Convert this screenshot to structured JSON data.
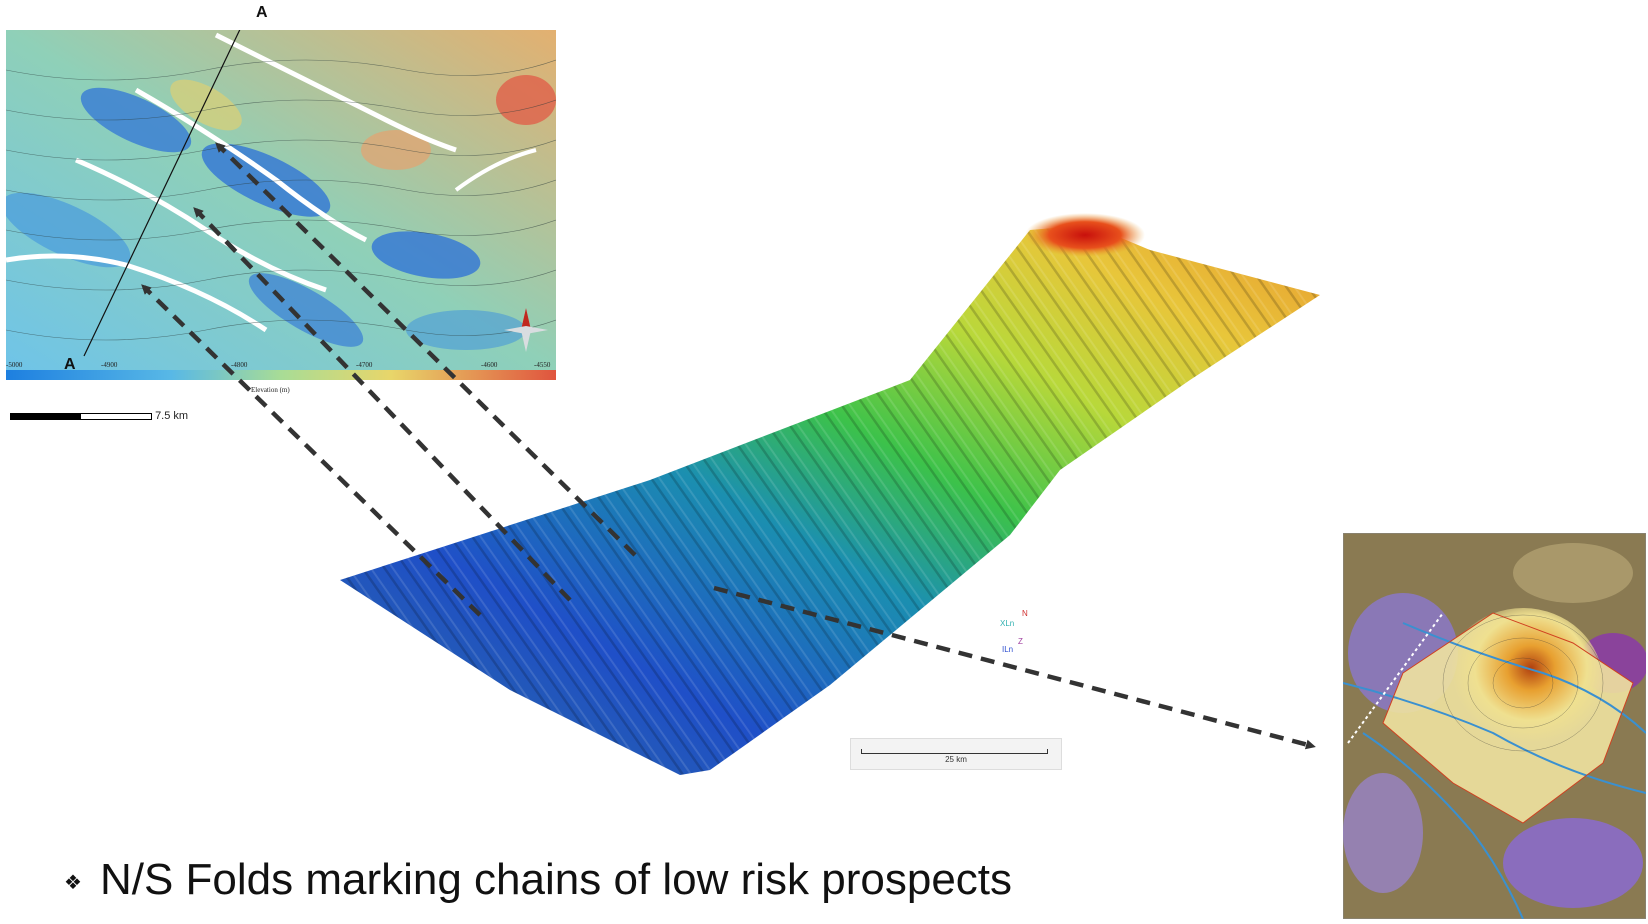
{
  "map_panel": {
    "label_top": "A",
    "label_bottom": "A",
    "colorbar_ticks": [
      "-5000",
      "-4900",
      "-4800",
      "-4700",
      "-4600",
      "-4550"
    ],
    "colorbar_title": "Elevation (m)"
  },
  "scale_small": "7.5 km",
  "scale_large": "25 km",
  "orientation": {
    "n": "N",
    "xl": "XLn",
    "il": "ILn",
    "z": "Z"
  },
  "caption": "N/S Folds marking chains of low risk prospects",
  "caption_bullet": "❖",
  "colors": {
    "deep": "#1f4fc8",
    "mid": "#3cc24a",
    "high": "#e8c63a",
    "peak": "#d81e10",
    "arrow": "#333333"
  }
}
